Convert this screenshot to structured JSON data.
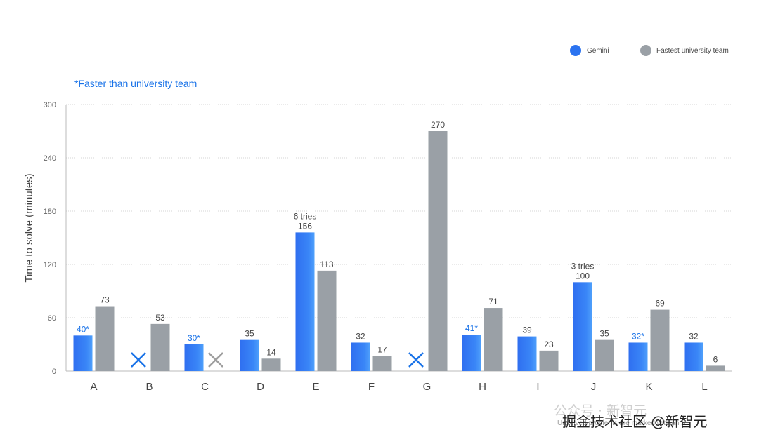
{
  "chart_data": {
    "type": "bar",
    "categories": [
      "A",
      "B",
      "C",
      "D",
      "E",
      "F",
      "G",
      "H",
      "I",
      "J",
      "K",
      "L"
    ],
    "series": [
      {
        "name": "Gemini",
        "color": "#2b73f0",
        "values": [
          40,
          null,
          30,
          35,
          156,
          32,
          null,
          41,
          39,
          100,
          32,
          32
        ],
        "labels": [
          "40*",
          "",
          "30*",
          "35",
          "156",
          "32",
          "",
          "41*",
          "39",
          "100",
          "32*",
          "32"
        ],
        "highlight": [
          true,
          false,
          true,
          false,
          false,
          false,
          false,
          true,
          false,
          false,
          true,
          false
        ],
        "unsolved": [
          false,
          true,
          false,
          false,
          false,
          false,
          true,
          false,
          false,
          false,
          false,
          false
        ],
        "annotations": [
          "",
          "",
          "",
          "",
          "6 tries",
          "",
          "",
          "",
          "",
          "3 tries",
          "",
          ""
        ]
      },
      {
        "name": "Fastest university team",
        "color": "#9aa0a6",
        "values": [
          73,
          53,
          null,
          14,
          113,
          17,
          270,
          71,
          23,
          35,
          69,
          6
        ],
        "labels": [
          "73",
          "53",
          "",
          "14",
          "113",
          "17",
          "270",
          "71",
          "23",
          "35",
          "69",
          "6"
        ],
        "unsolved": [
          false,
          false,
          true,
          false,
          false,
          false,
          false,
          false,
          false,
          false,
          false,
          false
        ]
      }
    ],
    "ylabel": "Time to solve (minutes)",
    "xlabel": "",
    "ylim": [
      0,
      300
    ],
    "yticks": [
      0,
      60,
      120,
      180,
      240,
      300
    ],
    "grid": true,
    "legend": "top-right",
    "note": "*Faster than university team",
    "unsolved_marker_colors": {
      "Gemini": "#1a73e8",
      "Fastest university team": "#9e9e9e"
    }
  },
  "watermark": {
    "footer_text": "Unsolved problems are marked with an X",
    "overlay_text": "掘金技术社区 @新智元",
    "wechat_text": "公众号 · 新智元"
  }
}
